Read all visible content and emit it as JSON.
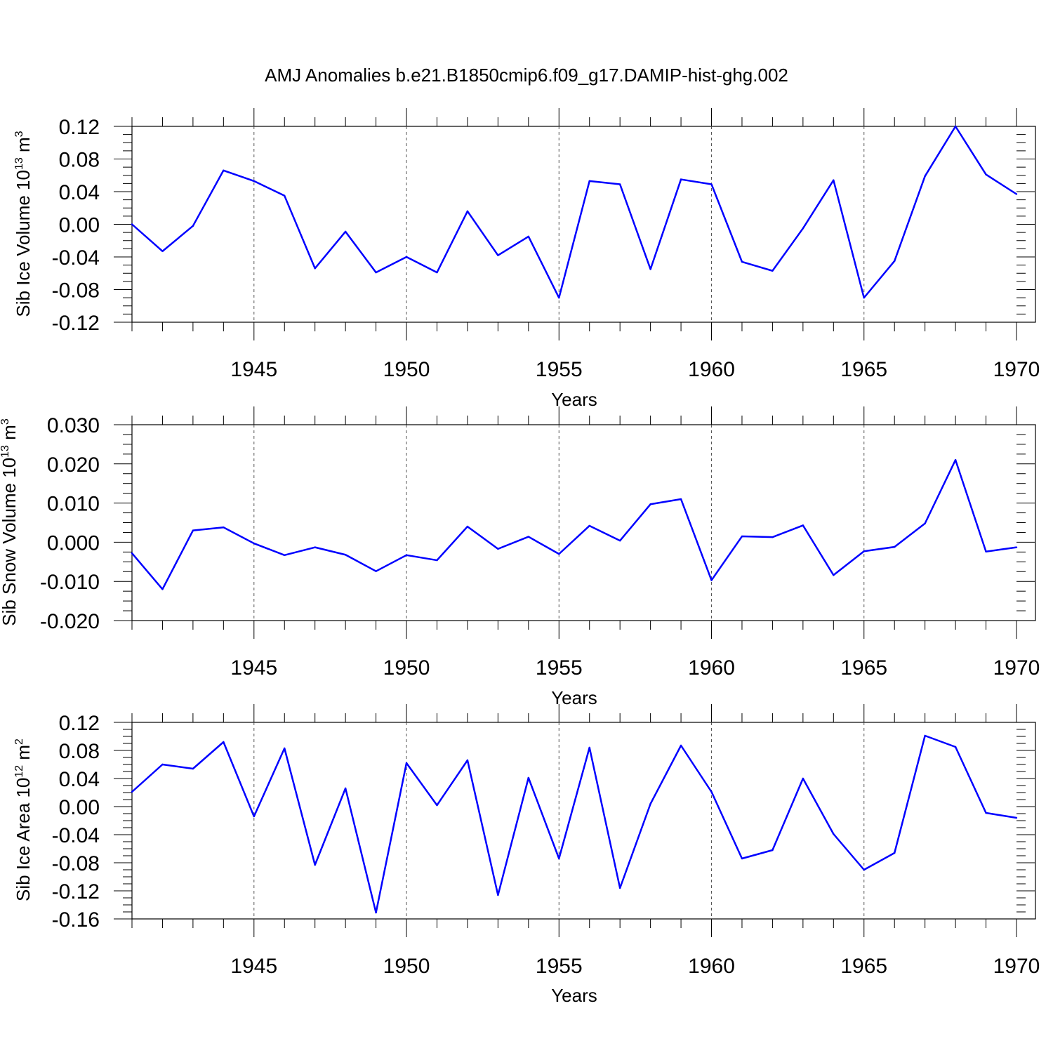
{
  "title": "AMJ Anomalies b.e21.B1850cmip6.f09_g17.DAMIP-hist-ghg.002",
  "line_color": "#0000ff",
  "chart_data": [
    {
      "type": "line",
      "ylabel_main": "Sib Ice Volume 10",
      "ylabel_exp": "13",
      "ylabel_unit": "m",
      "ylabel_unit_exp": "3",
      "xlabel": "Years",
      "xlim": [
        1941,
        1970
      ],
      "ylim": [
        -0.12,
        0.12
      ],
      "yticks": [
        "0.12",
        "0.08",
        "0.04",
        "0.00",
        "-0.04",
        "-0.08",
        "-0.12"
      ],
      "ytick_values": [
        0.12,
        0.08,
        0.04,
        0.0,
        -0.04,
        -0.08,
        -0.12
      ],
      "xticks": [
        "1945",
        "1950",
        "1955",
        "1960",
        "1965",
        "1970"
      ],
      "xtick_values": [
        1945,
        1950,
        1955,
        1960,
        1965,
        1970
      ],
      "grid": "vertical dashed at major x ticks",
      "x": [
        1941,
        1942,
        1943,
        1944,
        1945,
        1946,
        1947,
        1948,
        1949,
        1950,
        1951,
        1952,
        1953,
        1954,
        1955,
        1956,
        1957,
        1958,
        1959,
        1960,
        1961,
        1962,
        1963,
        1964,
        1965,
        1966,
        1967,
        1968,
        1969,
        1970
      ],
      "values": [
        0.0,
        -0.033,
        -0.002,
        0.066,
        0.053,
        0.035,
        -0.054,
        -0.009,
        -0.059,
        -0.04,
        -0.059,
        0.016,
        -0.038,
        -0.015,
        -0.09,
        0.053,
        0.049,
        -0.055,
        0.055,
        0.049,
        -0.046,
        -0.057,
        -0.005,
        0.054,
        -0.09,
        -0.045,
        0.059,
        0.12,
        0.061,
        0.037
      ]
    },
    {
      "type": "line",
      "ylabel_main": "Sib Snow Volume 10",
      "ylabel_exp": "13",
      "ylabel_unit": "m",
      "ylabel_unit_exp": "3",
      "xlabel": "Years",
      "xlim": [
        1941,
        1970
      ],
      "ylim": [
        -0.02,
        0.03
      ],
      "yticks": [
        "0.030",
        "0.020",
        "0.010",
        "0.000",
        "-0.010",
        "-0.020"
      ],
      "ytick_values": [
        0.03,
        0.02,
        0.01,
        0.0,
        -0.01,
        -0.02
      ],
      "xticks": [
        "1945",
        "1950",
        "1955",
        "1960",
        "1965",
        "1970"
      ],
      "xtick_values": [
        1945,
        1950,
        1955,
        1960,
        1965,
        1970
      ],
      "grid": "vertical dashed at major x ticks",
      "x": [
        1941,
        1942,
        1943,
        1944,
        1945,
        1946,
        1947,
        1948,
        1949,
        1950,
        1951,
        1952,
        1953,
        1954,
        1955,
        1956,
        1957,
        1958,
        1959,
        1960,
        1961,
        1962,
        1963,
        1964,
        1965,
        1966,
        1967,
        1968,
        1969,
        1970
      ],
      "values": [
        -0.0028,
        -0.012,
        0.003,
        0.0038,
        -0.0003,
        -0.0033,
        -0.0013,
        -0.0032,
        -0.0074,
        -0.0033,
        -0.0046,
        0.004,
        -0.0017,
        0.0014,
        -0.003,
        0.0042,
        0.0004,
        0.0097,
        0.011,
        -0.0097,
        0.0015,
        0.0013,
        0.0043,
        -0.0084,
        -0.0023,
        -0.0012,
        0.0048,
        0.021,
        -0.0024,
        -0.0013
      ]
    },
    {
      "type": "line",
      "ylabel_main": "Sib Ice Area 10",
      "ylabel_exp": "12",
      "ylabel_unit": "m",
      "ylabel_unit_exp": "2",
      "xlabel": "Years",
      "xlim": [
        1941,
        1970
      ],
      "ylim": [
        -0.16,
        0.12
      ],
      "yticks": [
        "0.12",
        "0.08",
        "0.04",
        "0.00",
        "-0.04",
        "-0.08",
        "-0.12",
        "-0.16"
      ],
      "ytick_values": [
        0.12,
        0.08,
        0.04,
        0.0,
        -0.04,
        -0.08,
        -0.12,
        -0.16
      ],
      "xticks": [
        "1945",
        "1950",
        "1955",
        "1960",
        "1965",
        "1970"
      ],
      "xtick_values": [
        1945,
        1950,
        1955,
        1960,
        1965,
        1970
      ],
      "grid": "vertical dashed at major x ticks",
      "x": [
        1941,
        1942,
        1943,
        1944,
        1945,
        1946,
        1947,
        1948,
        1949,
        1950,
        1951,
        1952,
        1953,
        1954,
        1955,
        1956,
        1957,
        1958,
        1959,
        1960,
        1961,
        1962,
        1963,
        1964,
        1965,
        1966,
        1967,
        1968,
        1969,
        1970
      ],
      "values": [
        0.021,
        0.06,
        0.054,
        0.092,
        -0.014,
        0.083,
        -0.083,
        0.026,
        -0.151,
        0.062,
        0.002,
        0.066,
        -0.126,
        0.041,
        -0.074,
        0.084,
        -0.116,
        0.004,
        0.087,
        0.021,
        -0.074,
        -0.062,
        0.04,
        -0.039,
        -0.09,
        -0.066,
        0.101,
        0.085,
        -0.009,
        -0.016
      ]
    }
  ]
}
